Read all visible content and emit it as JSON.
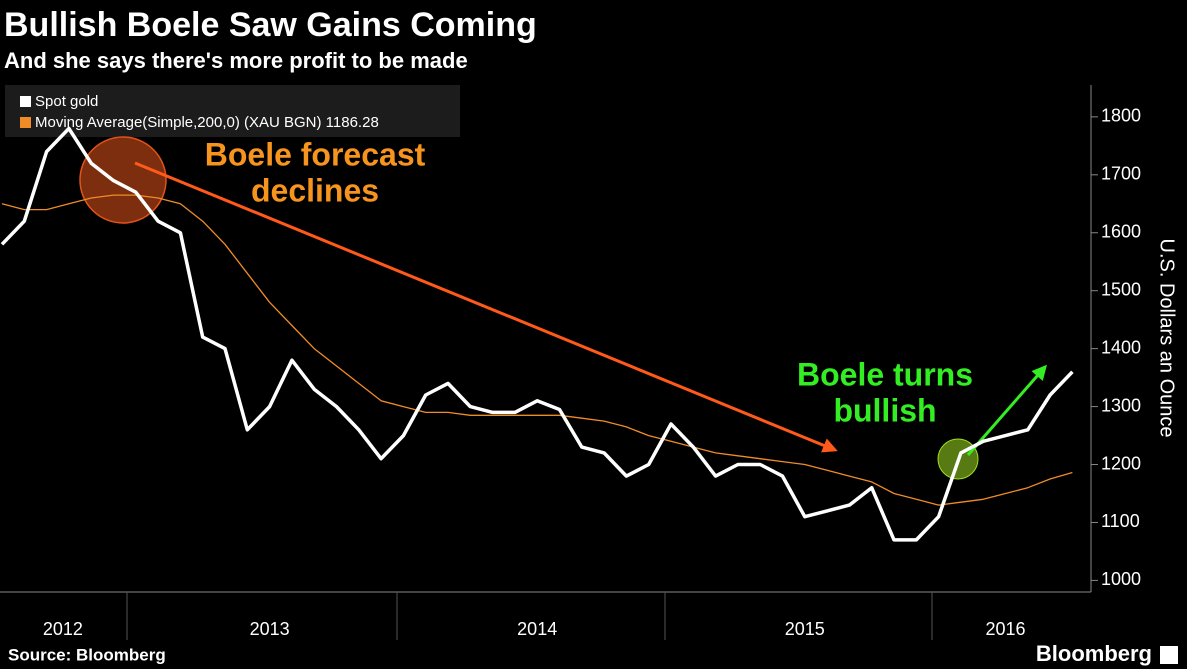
{
  "title": "Bullish Boele Saw Gains Coming",
  "subtitle": "And she says there's more profit to be made",
  "source": "Source: Bloomberg",
  "brand": "Bloomberg",
  "chart_data": {
    "type": "line",
    "y_label": "U.S. Dollars an Ounce",
    "categories": [
      null,
      null,
      null,
      "2012",
      null,
      null,
      null,
      null,
      null,
      null,
      null,
      null,
      "2013",
      null,
      null,
      null,
      null,
      null,
      null,
      null,
      null,
      null,
      null,
      null,
      "2014",
      null,
      null,
      null,
      null,
      null,
      null,
      null,
      null,
      null,
      null,
      null,
      "2015",
      null,
      null,
      null,
      null,
      null,
      null,
      null,
      null,
      "2016",
      null,
      null,
      null
    ],
    "series": [
      {
        "name": "Spot gold",
        "color": "#ffffff",
        "values": [
          1580,
          1620,
          1740,
          1780,
          1720,
          1690,
          1670,
          1620,
          1600,
          1420,
          1400,
          1260,
          1300,
          1380,
          1330,
          1300,
          1260,
          1210,
          1250,
          1320,
          1340,
          1300,
          1290,
          1290,
          1310,
          1295,
          1230,
          1220,
          1180,
          1200,
          1270,
          1230,
          1180,
          1200,
          1200,
          1180,
          1110,
          1120,
          1130,
          1160,
          1070,
          1070,
          1110,
          1220,
          1240,
          1250,
          1260,
          1320,
          1360
        ]
      },
      {
        "name": "Moving Average(Simple,200,0) (XAU BGN) 1186.28",
        "color": "#f08c28",
        "values": [
          1650,
          1640,
          1640,
          1650,
          1660,
          1665,
          1665,
          1660,
          1650,
          1620,
          1580,
          1530,
          1480,
          1440,
          1400,
          1370,
          1340,
          1310,
          1300,
          1290,
          1290,
          1285,
          1285,
          1285,
          1285,
          1285,
          1280,
          1275,
          1265,
          1250,
          1240,
          1230,
          1220,
          1215,
          1210,
          1205,
          1200,
          1190,
          1180,
          1170,
          1150,
          1140,
          1130,
          1135,
          1140,
          1150,
          1160,
          1175,
          1186.28
        ]
      }
    ],
    "ylim": [
      980,
      1855
    ],
    "yticks": [
      1000,
      1100,
      1200,
      1300,
      1400,
      1500,
      1600,
      1700,
      1800
    ],
    "legend": "top-left",
    "annotations": [
      {
        "lines": [
          "Boele forecast",
          "declines"
        ],
        "color": "#f7941d"
      },
      {
        "lines": [
          "Boele turns",
          "bullish"
        ],
        "color": "#33ee22"
      }
    ]
  }
}
